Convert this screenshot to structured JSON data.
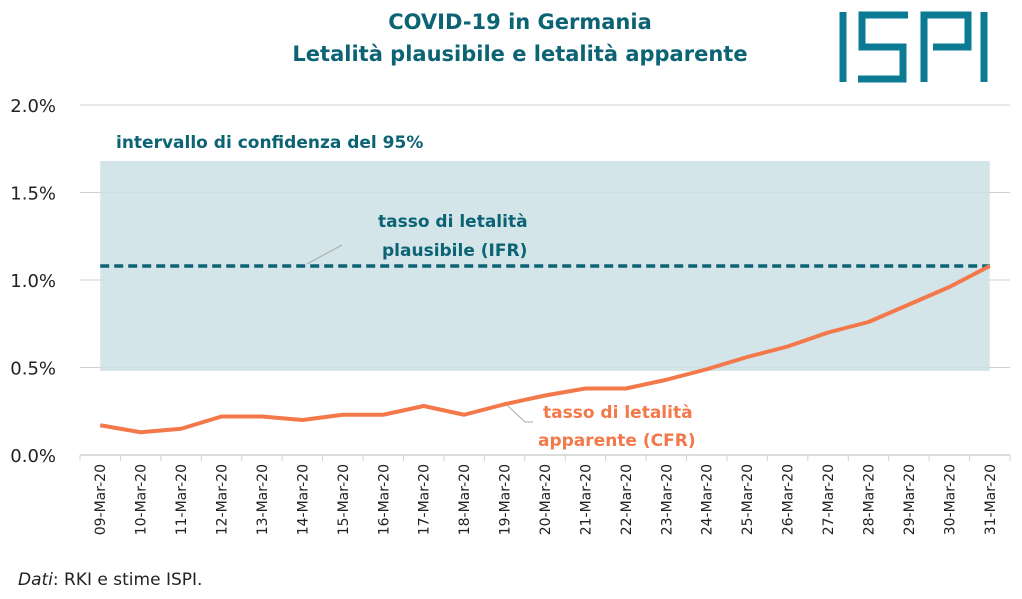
{
  "title_line1": "COVID-19 in Germania",
  "title_line2": "Letalità plausibile e letalità apparente",
  "logo_text": "ISPI",
  "source_prefix": "Dati",
  "source_text": ": RKI e stime ISPI.",
  "colors": {
    "brand": "#0b6374",
    "band": "#cce0e5",
    "cfr": "#f3784a",
    "grid": "#d0d0d0"
  },
  "chart_data": {
    "type": "line",
    "title": "COVID-19 in Germania — Letalità plausibile e letalità apparente",
    "xlabel": "",
    "ylabel": "",
    "ylim": [
      0,
      2.0
    ],
    "y_ticks": [
      "0.0%",
      "0.5%",
      "1.0%",
      "1.5%",
      "2.0%"
    ],
    "y_tick_values": [
      0,
      0.5,
      1.0,
      1.5,
      2.0
    ],
    "grid": true,
    "categories": [
      "09-Mar-20",
      "10-Mar-20",
      "11-Mar-20",
      "12-Mar-20",
      "13-Mar-20",
      "14-Mar-20",
      "15-Mar-20",
      "16-Mar-20",
      "17-Mar-20",
      "18-Mar-20",
      "19-Mar-20",
      "20-Mar-20",
      "21-Mar-20",
      "22-Mar-20",
      "23-Mar-20",
      "24-Mar-20",
      "25-Mar-20",
      "26-Mar-20",
      "27-Mar-20",
      "28-Mar-20",
      "29-Mar-20",
      "30-Mar-20",
      "31-Mar-20"
    ],
    "series": [
      {
        "name": "tasso di letalità apparente (CFR)",
        "values": [
          0.17,
          0.13,
          0.15,
          0.22,
          0.22,
          0.2,
          0.23,
          0.23,
          0.28,
          0.23,
          0.29,
          0.34,
          0.38,
          0.38,
          0.43,
          0.49,
          0.56,
          0.62,
          0.7,
          0.76,
          0.86,
          0.96,
          1.08
        ]
      },
      {
        "name": "tasso di letalità plausibile (IFR)",
        "value": 1.08,
        "style": "dashed"
      }
    ],
    "confidence_band": {
      "label": "intervallo di confidenza del 95%",
      "low": 0.48,
      "high": 1.68
    },
    "annotations": {
      "band": "intervallo di confidenza del 95%",
      "ifr_line1": "tasso di letalità",
      "ifr_line2": "plausibile (IFR)",
      "cfr_line1": "tasso di letalità",
      "cfr_line2": "apparente (CFR)"
    }
  }
}
